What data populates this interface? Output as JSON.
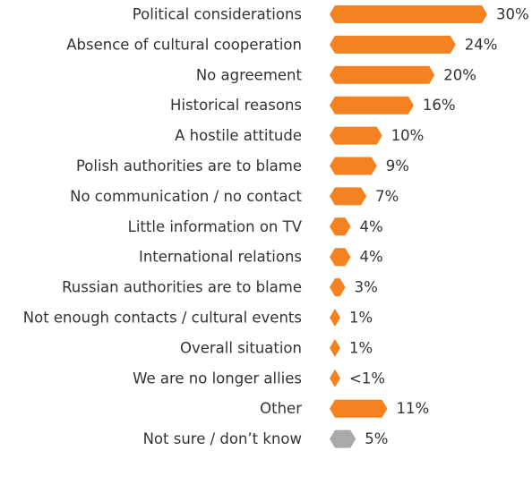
{
  "chart_data": {
    "type": "bar",
    "orientation": "horizontal",
    "title": "",
    "xlabel": "",
    "ylabel": "",
    "grid": false,
    "legend": "none",
    "categories": [
      "Political considerations",
      "Absence of cultural cooperation",
      "No agreement",
      "Historical reasons",
      "A hostile attitude",
      "Polish authorities are to blame",
      "No communication / no contact",
      "Little information on TV",
      "International relations",
      "Russian authorities are to blame",
      "Not enough contacts / cultural events",
      "Overall situation",
      "We are no longer allies",
      "Other",
      "Not sure / don’t know"
    ],
    "values": [
      30,
      24,
      20,
      16,
      10,
      9,
      7,
      4,
      4,
      3,
      1,
      1,
      0.5,
      11,
      5
    ],
    "value_labels": [
      "30%",
      "24%",
      "20%",
      "16%",
      "10%",
      "9%",
      "7%",
      "4%",
      "4%",
      "3%",
      "1%",
      "1%",
      "<1%",
      "11%",
      "5%"
    ],
    "bar_colors": [
      "#f58220",
      "#f58220",
      "#f58220",
      "#f58220",
      "#f58220",
      "#f58220",
      "#f58220",
      "#f58220",
      "#f58220",
      "#f58220",
      "#f58220",
      "#f58220",
      "#f58220",
      "#f58220",
      "#aaaaaa"
    ],
    "xlim": [
      0,
      30
    ]
  }
}
